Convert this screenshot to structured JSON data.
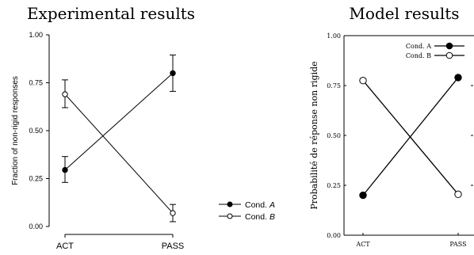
{
  "chart_data": [
    {
      "type": "line",
      "title": "Experimental results",
      "xlabel": "",
      "ylabel": "Fraction of non-rigid responses",
      "categories": [
        "ACT",
        "PASS"
      ],
      "ylim": [
        0,
        1
      ],
      "yticks": [
        "0.00",
        "0.25",
        "0.50",
        "0.75",
        "1.00"
      ],
      "error_bars": true,
      "grid": false,
      "legend_position": "right",
      "series": [
        {
          "name": "Cond. A",
          "legend_prefix": "Cond. ",
          "legend_italic": "A",
          "marker": "filled",
          "values": [
            0.295,
            0.8
          ],
          "error_low": [
            0.23,
            0.705
          ],
          "error_high": [
            0.365,
            0.895
          ]
        },
        {
          "name": "Cond. B",
          "legend_prefix": "Cond. ",
          "legend_italic": "B",
          "marker": "open",
          "values": [
            0.69,
            0.07
          ],
          "error_low": [
            0.62,
            0.025
          ],
          "error_high": [
            0.765,
            0.115
          ]
        }
      ]
    },
    {
      "type": "line",
      "title": "Model results",
      "xlabel": "",
      "ylabel": "Probabilité de réponse non rigide",
      "categories": [
        "ACT",
        "PASS"
      ],
      "ylim": [
        0,
        1
      ],
      "yticks": [
        "0.00",
        "0.25",
        "0.50",
        "0.75",
        "1.00"
      ],
      "error_bars": false,
      "grid": false,
      "legend_position": "top-right",
      "series": [
        {
          "name": "Cond. A",
          "marker": "filled",
          "values": [
            0.2,
            0.79
          ]
        },
        {
          "name": "Cond. B",
          "marker": "open",
          "values": [
            0.775,
            0.205
          ]
        }
      ]
    }
  ]
}
